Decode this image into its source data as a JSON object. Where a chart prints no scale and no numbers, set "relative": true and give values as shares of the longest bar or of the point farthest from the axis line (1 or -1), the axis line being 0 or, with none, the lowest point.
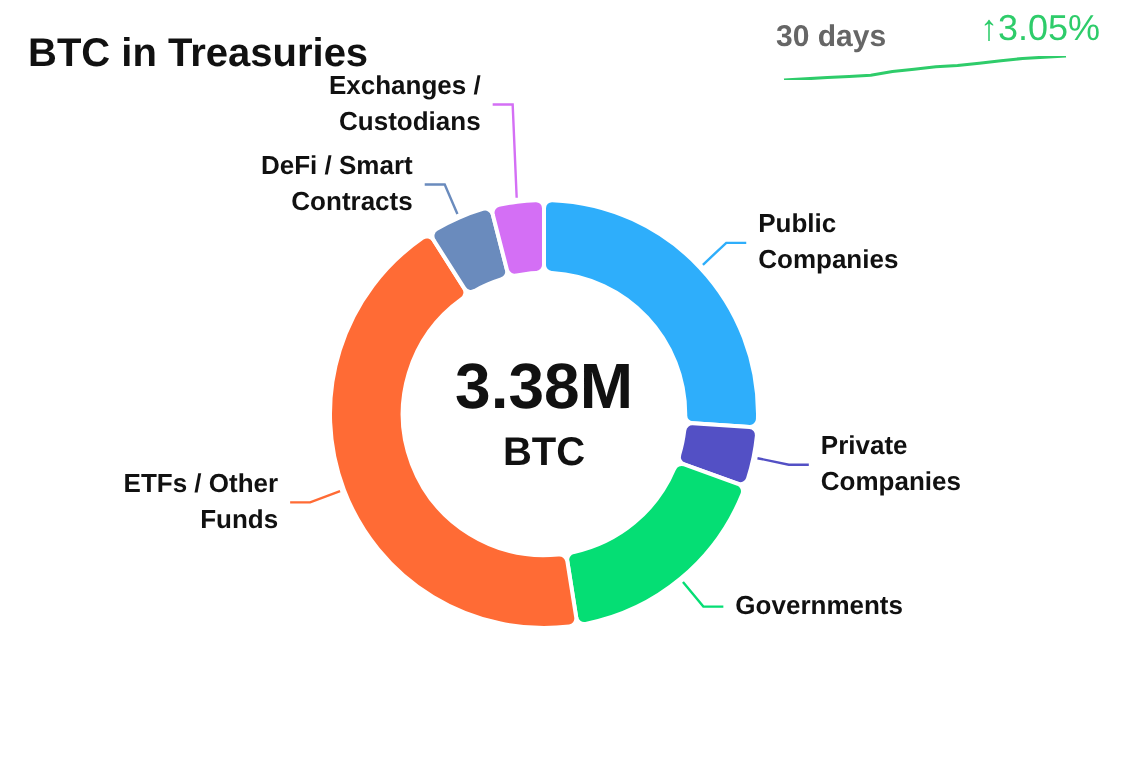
{
  "chart_data": [
    {
      "type": "donut",
      "title": "BTC in Treasuries",
      "categories": [
        "Public Companies",
        "Private Companies",
        "Governments",
        "ETFs / Other Funds",
        "DeFi / Smart Contracts",
        "Exchanges / Custodians"
      ],
      "values": [
        26,
        4.5,
        17,
        43.5,
        5,
        4
      ],
      "colors": [
        "#2eaefb",
        "#5350c5",
        "#05de74",
        "#ff6b35",
        "#6a8bbd",
        "#d46ff5"
      ],
      "annotations": [
        "3.38M",
        "BTC"
      ]
    },
    {
      "type": "line",
      "relative": true,
      "categories": [
        null,
        null,
        null,
        null,
        null,
        null,
        null,
        null,
        null,
        null,
        null,
        null,
        null,
        null
      ],
      "series": [
        {
          "color": "#2ecc6a",
          "values": [
            0,
            0.05,
            0.1,
            0.15,
            0.2,
            0.35,
            0.45,
            0.55,
            0.6,
            0.7,
            0.8,
            0.9,
            0.95,
            1
          ]
        }
      ],
      "annotations": [
        "30 days",
        "↑3.05%"
      ]
    }
  ]
}
